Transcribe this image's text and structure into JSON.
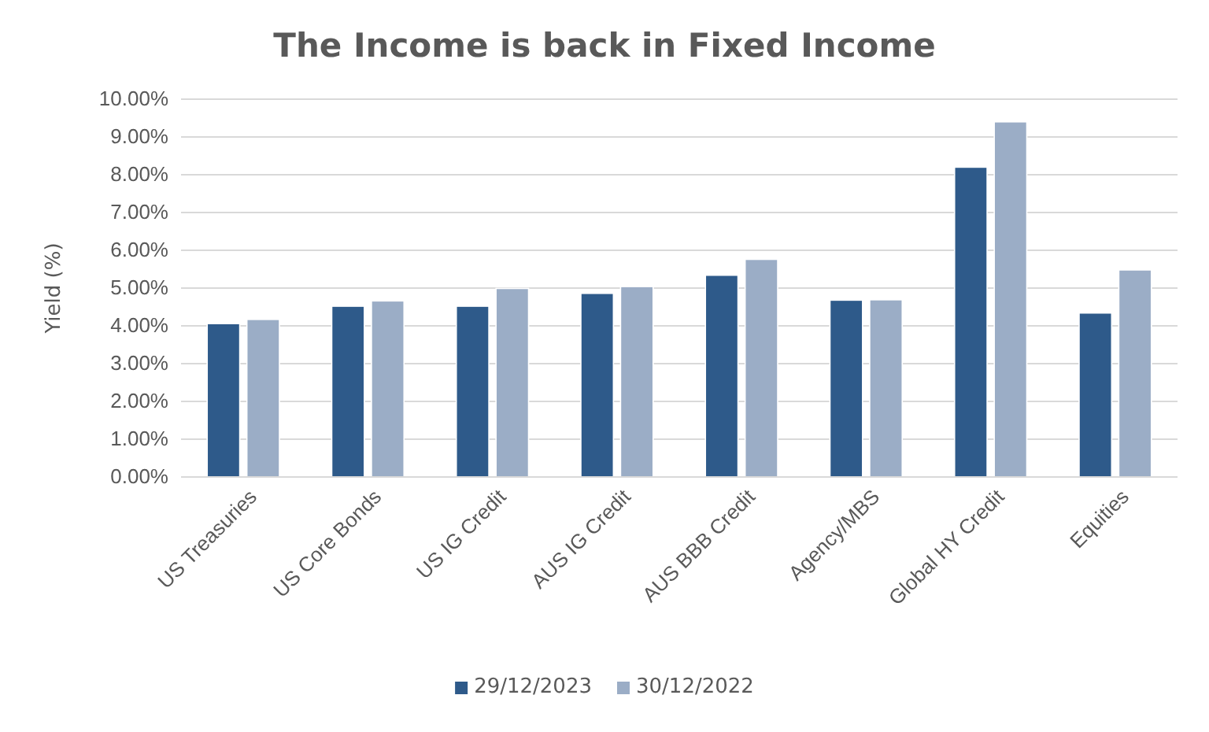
{
  "chart_data": {
    "type": "bar",
    "title": "The Income is back in Fixed Income",
    "ylabel": "Yield (%)",
    "categories": [
      "US Treasuries",
      "US Core Bonds",
      "US IG Credit",
      "AUS IG Credit",
      "AUS BBB Credit",
      "Agency/MBS",
      "Global HY Credit",
      "Equities"
    ],
    "series": [
      {
        "name": "29/12/2023",
        "color": "#2e5a8a",
        "values": [
          4.06,
          4.52,
          4.52,
          4.86,
          5.34,
          4.68,
          8.2,
          4.34
        ]
      },
      {
        "name": "30/12/2022",
        "color": "#9badc6",
        "values": [
          4.17,
          4.66,
          4.99,
          5.04,
          5.76,
          4.69,
          9.4,
          5.48
        ]
      }
    ],
    "ylim": [
      0,
      10
    ],
    "yticks": [
      {
        "value": 0,
        "label": "0.00%"
      },
      {
        "value": 1,
        "label": "1.00%"
      },
      {
        "value": 2,
        "label": "2.00%"
      },
      {
        "value": 3,
        "label": "3.00%"
      },
      {
        "value": 4,
        "label": "4.00%"
      },
      {
        "value": 5,
        "label": "5.00%"
      },
      {
        "value": 6,
        "label": "6.00%"
      },
      {
        "value": 7,
        "label": "7.00%"
      },
      {
        "value": 8,
        "label": "8.00%"
      },
      {
        "value": 9,
        "label": "9.00%"
      },
      {
        "value": 10,
        "label": "10.00%"
      }
    ],
    "grid": "y",
    "legend": "bottom"
  }
}
